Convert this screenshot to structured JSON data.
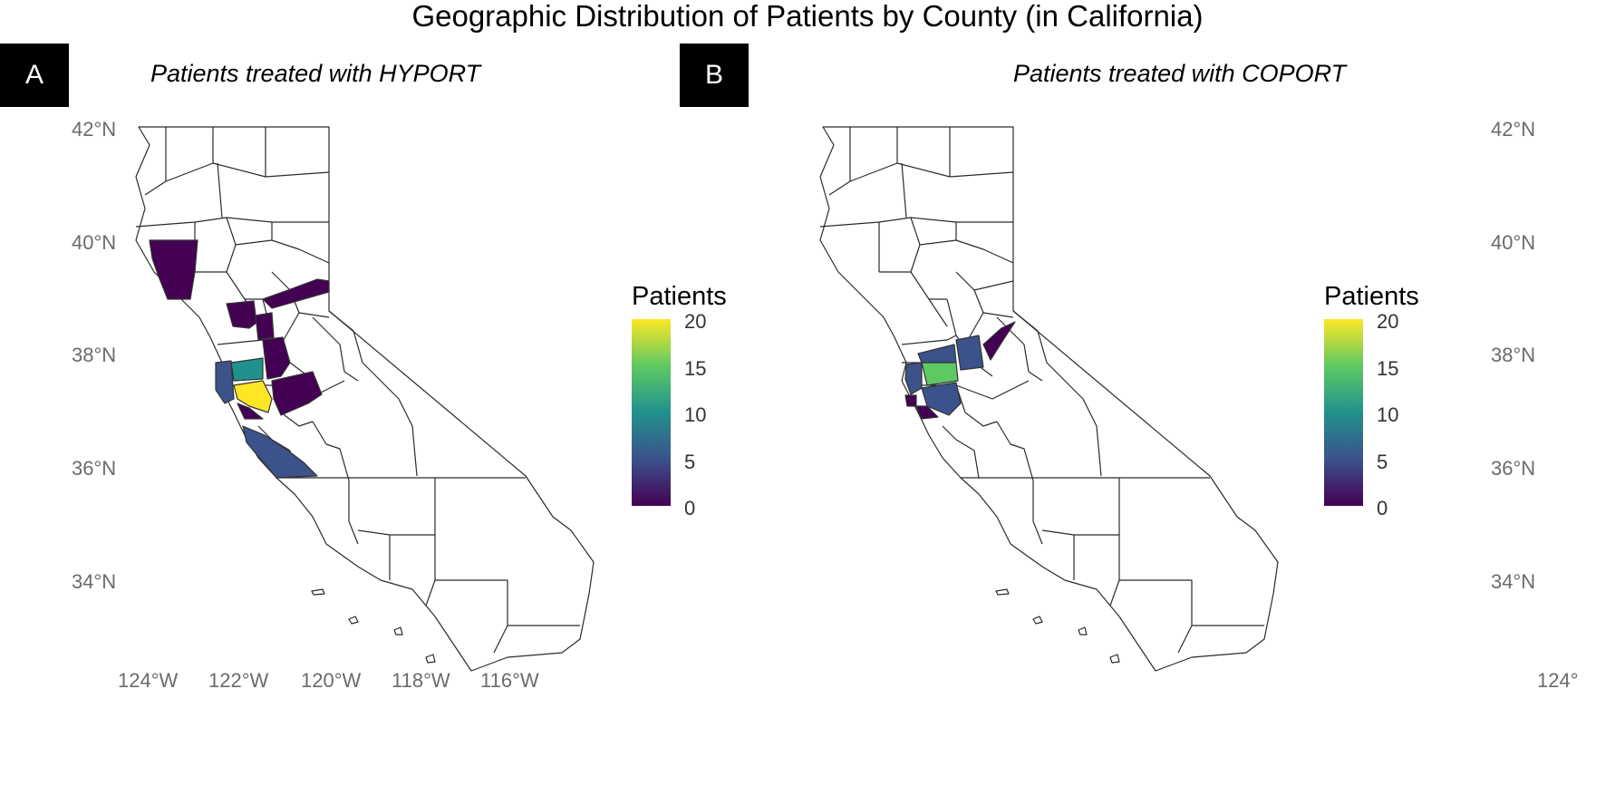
{
  "title": "Geographic Distribution of Patients by County (in California)",
  "axes": {
    "lat_labels": [
      {
        "value": 42,
        "label": "42°N"
      },
      {
        "value": 40,
        "label": "40°N"
      },
      {
        "value": 38,
        "label": "38°N"
      },
      {
        "value": 36,
        "label": "36°N"
      },
      {
        "value": 34,
        "label": "34°N"
      }
    ],
    "lon_labels": [
      {
        "value": -124,
        "label": "124°W"
      },
      {
        "value": -122,
        "label": "122°W"
      },
      {
        "value": -120,
        "label": "120°W"
      },
      {
        "value": -118,
        "label": "118°W"
      },
      {
        "value": -116,
        "label": "116°W"
      }
    ]
  },
  "colors": {
    "scale": [
      "#440154",
      "#3b528b",
      "#21918c",
      "#5ec962",
      "#fde725"
    ],
    "border": "#222222",
    "empty": "#ffffff"
  },
  "panels": [
    {
      "tag": "A",
      "subtitle": "Patients treated with HYPORT",
      "legend": {
        "title": "Patients",
        "ticks": [
          "20",
          "15",
          "10",
          "5",
          "0"
        ]
      },
      "highlighted_counties": [
        {
          "county": "Mendocino",
          "patients": 1
        },
        {
          "county": "Yolo",
          "patients": 1
        },
        {
          "county": "Placer",
          "patients": 1
        },
        {
          "county": "Sacramento",
          "patients": 1
        },
        {
          "county": "Contra Costa",
          "patients": 9
        },
        {
          "county": "Alameda",
          "patients": 20
        },
        {
          "county": "San Mateo",
          "patients": 6
        },
        {
          "county": "Santa Clara",
          "patients": 1
        },
        {
          "county": "San Joaquin",
          "patients": 1
        },
        {
          "county": "Stanislaus",
          "patients": 1
        },
        {
          "county": "Monterey",
          "patients": 4
        }
      ]
    },
    {
      "tag": "B",
      "subtitle": "Patients treated with COPORT",
      "legend": {
        "title": "Patients",
        "ticks": [
          "20",
          "15",
          "10",
          "5",
          "0"
        ]
      },
      "highlighted_counties": [
        {
          "county": "Solano",
          "patients": 5
        },
        {
          "county": "Contra Costa",
          "patients": 14
        },
        {
          "county": "Sacramento",
          "patients": 5
        },
        {
          "county": "El Dorado",
          "patients": 1
        },
        {
          "county": "Marin",
          "patients": 7
        },
        {
          "county": "San Francisco",
          "patients": 1
        },
        {
          "county": "Alameda",
          "patients": 5
        },
        {
          "county": "Santa Clara",
          "patients": 1
        }
      ]
    }
  ]
}
